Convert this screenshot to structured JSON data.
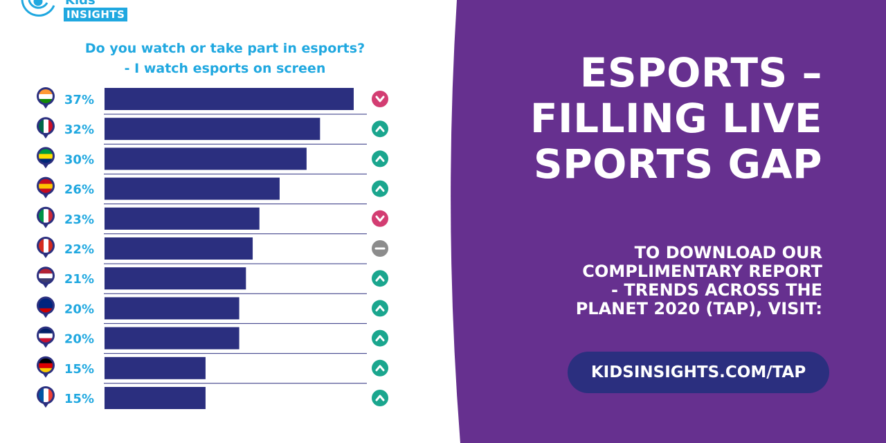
{
  "brand": {
    "logo_small": "Kids",
    "logo_big": "INSIGHTS"
  },
  "headline": [
    "ESPORTS –",
    "FILLING LIVE",
    "SPORTS GAP"
  ],
  "cta": [
    "TO DOWNLOAD OUR",
    "COMPLIMENTARY REPORT",
    "- TRENDS ACROSS THE",
    "PLANET 2020 (TAP), VISIT:"
  ],
  "url": "KIDSINSIGHTS.COM/TAP",
  "colors": {
    "purple": "#66308f",
    "navy": "#2b2f7f",
    "cyan": "#20a8e0",
    "up": "#1aa68e",
    "down": "#d33d72",
    "flat": "#8c8c8c"
  },
  "chart_data": {
    "type": "bar",
    "orientation": "horizontal",
    "title": "Do you watch or take part in esports?",
    "subtitle": "- I watch esports on screen",
    "categories": [
      "India",
      "Mexico",
      "Brazil",
      "Spain",
      "Italy",
      "Canada",
      "USA",
      "Australia",
      "UK",
      "Germany",
      "France"
    ],
    "flag_icons": [
      "flag-india-icon",
      "flag-mexico-icon",
      "flag-brazil-icon",
      "flag-spain-icon",
      "flag-italy-icon",
      "flag-canada-icon",
      "flag-usa-icon",
      "flag-australia-icon",
      "flag-uk-icon",
      "flag-germany-icon",
      "flag-france-icon"
    ],
    "values": [
      37,
      32,
      30,
      26,
      23,
      22,
      21,
      20,
      20,
      15,
      15
    ],
    "labels": [
      "37%",
      "32%",
      "30%",
      "26%",
      "23%",
      "22%",
      "21%",
      "20%",
      "20%",
      "15%",
      "15%"
    ],
    "trend": [
      "down",
      "up",
      "up",
      "up",
      "down",
      "flat",
      "up",
      "up",
      "up",
      "up",
      "up"
    ],
    "xlim": [
      0,
      40
    ],
    "grid": false
  }
}
